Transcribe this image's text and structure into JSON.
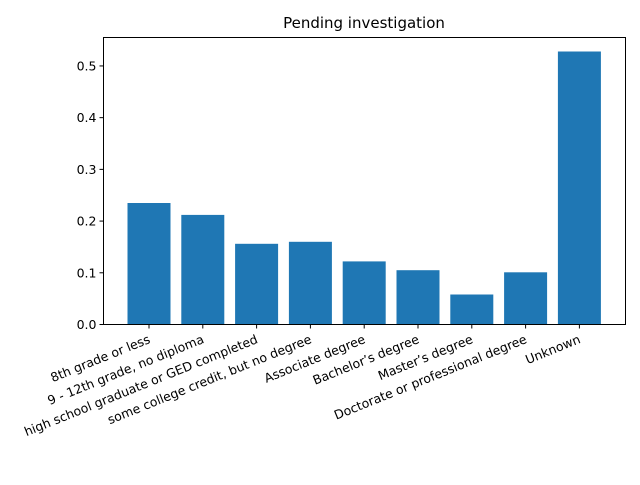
{
  "chart_data": {
    "type": "bar",
    "title": "Pending investigation",
    "xlabel": "",
    "ylabel": "",
    "categories": [
      "8th grade or less",
      "9 - 12th grade, no diploma",
      "high school graduate or GED completed",
      "some college credit, but no degree",
      "Associate degree",
      "Bachelor’s degree",
      "Master’s degree",
      "Doctorate or professional degree",
      "Unknown"
    ],
    "values": [
      0.235,
      0.212,
      0.156,
      0.16,
      0.122,
      0.105,
      0.058,
      0.101,
      0.528
    ],
    "ylim": [
      0,
      0.555
    ],
    "yticks": [
      0.0,
      0.1,
      0.2,
      0.3,
      0.4,
      0.5
    ],
    "ytick_labels": [
      "0.0",
      "0.1",
      "0.2",
      "0.3",
      "0.4",
      "0.5"
    ],
    "bar_color": "#1f77b4",
    "grid": false,
    "legend": "none"
  }
}
